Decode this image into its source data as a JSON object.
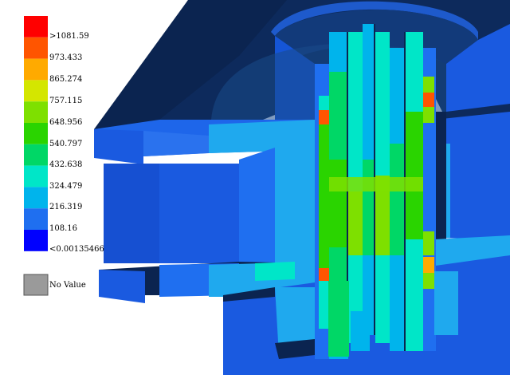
{
  "legend": {
    "levels": [
      {
        "label": ">1081.59",
        "color": "#ff0000"
      },
      {
        "label": "973.433",
        "color": "#ff5500"
      },
      {
        "label": "865.274",
        "color": "#ffaa00"
      },
      {
        "label": "757.115",
        "color": "#d4e600"
      },
      {
        "label": "648.956",
        "color": "#7ee000"
      },
      {
        "label": "540.797",
        "color": "#2ad400"
      },
      {
        "label": "432.638",
        "color": "#00d766"
      },
      {
        "label": "324.479",
        "color": "#00e6c8"
      },
      {
        "label": "216.319",
        "color": "#00b4ec"
      },
      {
        "label": "108.16",
        "color": "#1f6ff0"
      },
      {
        "label": "<0.00135466",
        "color": "#0000ff"
      }
    ],
    "no_value": {
      "label": "No Value",
      "color": "#9a9a9a"
    }
  },
  "colors": {
    "background": "#ffffff",
    "housing_top": "#0d2a5c",
    "housing_face": "#1a5ae0",
    "dark_face": "#0b2450"
  }
}
